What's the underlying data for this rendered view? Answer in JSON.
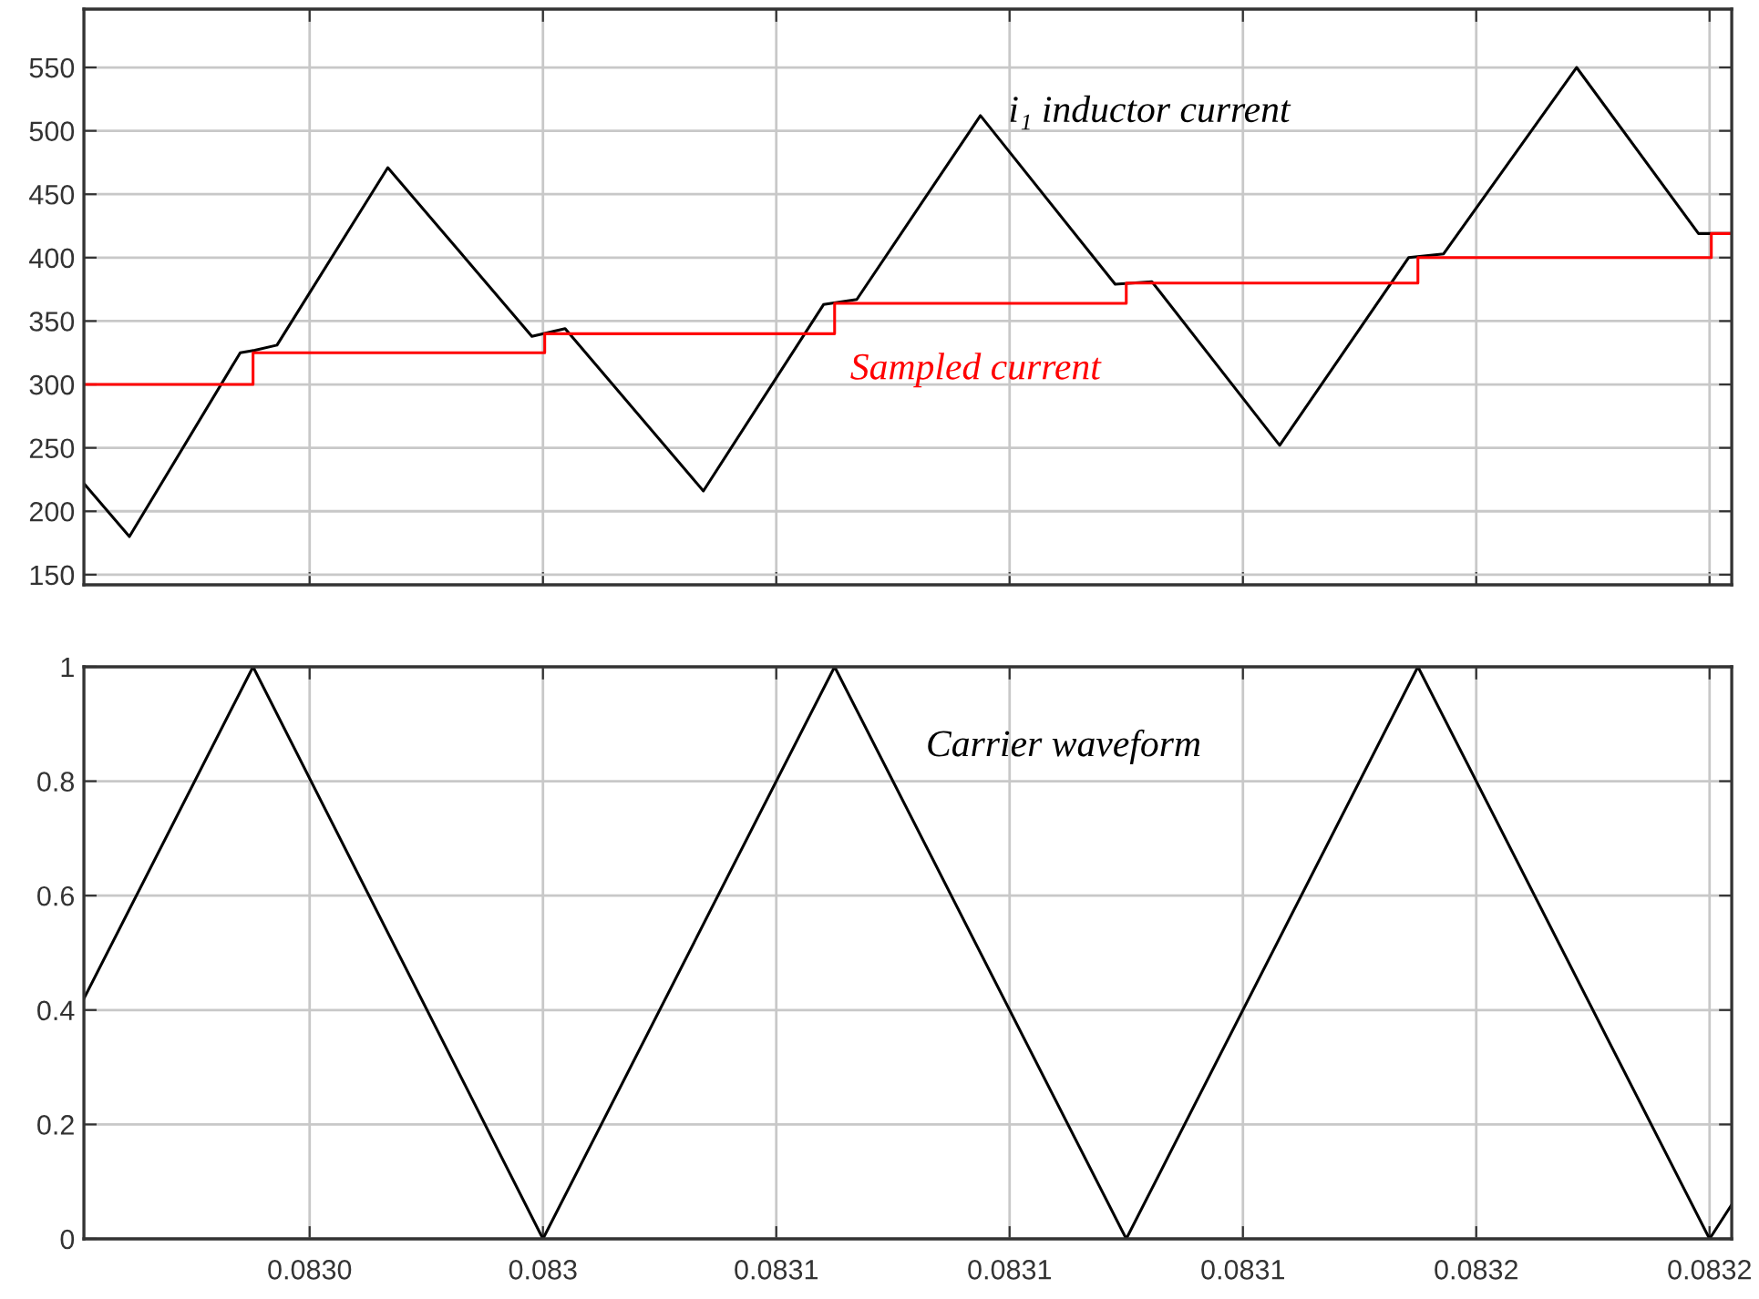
{
  "chart_data": [
    {
      "type": "line",
      "xlim": [
        0.0829413,
        0.0832238
      ],
      "ylim": [
        142,
        596
      ],
      "yticks": [
        150,
        200,
        250,
        300,
        350,
        400,
        450,
        500,
        550
      ],
      "xticks": [
        {
          "value": 0.08298,
          "label": null
        },
        {
          "value": 0.08302,
          "label": null
        },
        {
          "value": 0.08306,
          "label": null
        },
        {
          "value": 0.0831,
          "label": null
        },
        {
          "value": 0.08314,
          "label": null
        },
        {
          "value": 0.08318,
          "label": null
        },
        {
          "value": 0.08322,
          "label": null
        }
      ],
      "tick_labels": "y",
      "grid": true,
      "legend": false,
      "marker": "none",
      "series": [
        {
          "name": "i₁ inductor current",
          "color": "#000000",
          "x": [
            0.0829413,
            0.0829491,
            0.0829681,
            0.0829706,
            0.0829744,
            0.0829934,
            0.0830181,
            0.0830238,
            0.0830475,
            0.0830681,
            0.0830738,
            0.083095,
            0.0831181,
            0.0831244,
            0.0831463,
            0.0831684,
            0.0831744,
            0.0831972,
            0.0832181,
            0.0832238
          ],
          "values": [
            222,
            180,
            325,
            327,
            331,
            471,
            338,
            344,
            216,
            363,
            367,
            512,
            379,
            381,
            252,
            400,
            403,
            550,
            419,
            419
          ]
        },
        {
          "name": "Sampled current",
          "color": "#ff0000",
          "type": "step",
          "x": [
            0.0829413,
            0.0829703,
            0.0830203,
            0.08307,
            0.08312,
            0.08317,
            0.0832203,
            0.0832238
          ],
          "values": [
            300,
            325,
            340,
            364,
            380,
            400,
            419,
            419
          ]
        }
      ]
    },
    {
      "type": "line",
      "xlim": [
        0.0829413,
        0.0832238
      ],
      "ylim": [
        0,
        1
      ],
      "yticks": [
        0,
        0.2,
        0.4,
        0.6,
        0.8,
        1
      ],
      "xticks": [
        {
          "value": 0.08298,
          "label": "0.0830"
        },
        {
          "value": 0.08302,
          "label": "0.083"
        },
        {
          "value": 0.08306,
          "label": "0.0831"
        },
        {
          "value": 0.0831,
          "label": "0.0831"
        },
        {
          "value": 0.08314,
          "label": "0.0831"
        },
        {
          "value": 0.08318,
          "label": "0.0832"
        },
        {
          "value": 0.08322,
          "label": "0.0832"
        }
      ],
      "grid": true,
      "legend": false,
      "marker": "none",
      "series": [
        {
          "name": "Carrier waveform",
          "color": "#000000",
          "x": [
            0.0829413,
            0.0829703,
            0.08302,
            0.08307,
            0.08312,
            0.08317,
            0.08322,
            0.0832238
          ],
          "values": [
            0.42,
            1,
            0,
            1,
            0,
            1,
            0,
            0.06
          ]
        }
      ]
    }
  ]
}
